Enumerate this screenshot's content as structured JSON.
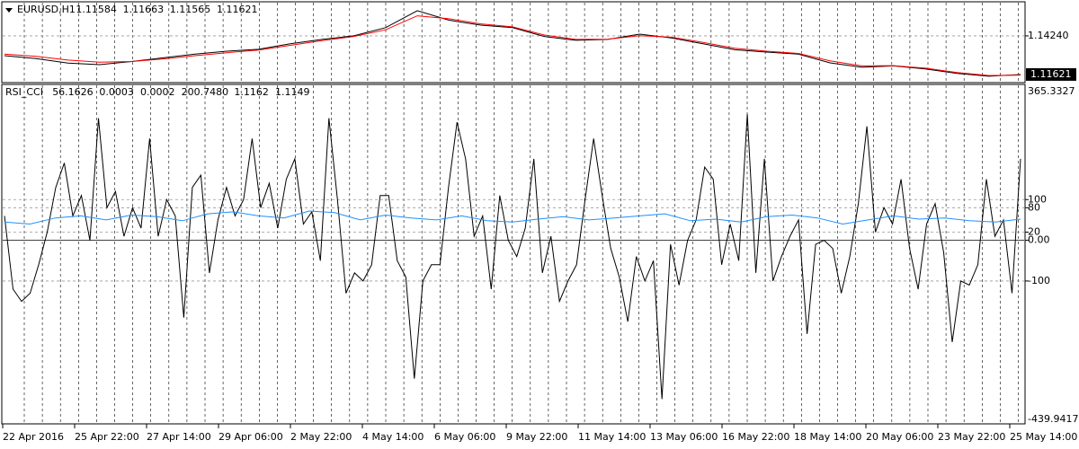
{
  "chart_data": [
    {
      "type": "line",
      "symbol": "EURUSD,H1",
      "header_values": [
        "1.11584",
        "1.11663",
        "1.11565",
        "1.11621"
      ],
      "series": [
        {
          "color": "#000000",
          "values": [
            1.129,
            1.127,
            1.124,
            1.1229,
            1.125,
            1.1275,
            1.13,
            1.132,
            1.1333,
            1.137,
            1.14,
            1.1424,
            1.148,
            1.1595,
            1.153,
            1.1497,
            1.148,
            1.142,
            1.1394,
            1.14,
            1.1436,
            1.141,
            1.137,
            1.133,
            1.1314,
            1.13,
            1.1241,
            1.1211,
            1.122,
            1.12,
            1.117,
            1.115,
            1.1162
          ]
        },
        {
          "color": "#ff0000",
          "values": [
            1.13,
            1.1285,
            1.126,
            1.1245,
            1.125,
            1.1268,
            1.129,
            1.131,
            1.1328,
            1.136,
            1.1392,
            1.142,
            1.1465,
            1.156,
            1.154,
            1.1505,
            1.1485,
            1.143,
            1.14,
            1.1402,
            1.1425,
            1.1415,
            1.138,
            1.134,
            1.132,
            1.1305,
            1.1255,
            1.122,
            1.1222,
            1.1205,
            1.1175,
            1.1155,
            1.1158
          ]
        }
      ],
      "ylim": [
        1.1107,
        1.1649
      ],
      "yticks": [
        {
          "value": 1.1424,
          "label": "1.14240"
        }
      ],
      "last_price": 1.11621
    },
    {
      "type": "line",
      "indicator": "RSI_CCI",
      "header_values": [
        "56.1626",
        "0.0003",
        "0.0002",
        "200.7480",
        "1.1162",
        "1.1149"
      ],
      "series": [
        {
          "color": "#000000",
          "values": [
            60,
            -120,
            -150,
            -130,
            -60,
            20,
            130,
            190,
            60,
            110,
            0,
            300,
            80,
            120,
            10,
            80,
            30,
            250,
            10,
            100,
            60,
            -190,
            130,
            160,
            -80,
            50,
            130,
            60,
            100,
            250,
            80,
            140,
            30,
            150,
            200,
            40,
            70,
            -50,
            300,
            100,
            -130,
            -80,
            -100,
            -60,
            110,
            110,
            -50,
            -90,
            -340,
            -100,
            -60,
            -60,
            130,
            290,
            200,
            10,
            60,
            -120,
            110,
            0,
            -40,
            30,
            200,
            -80,
            10,
            -150,
            -100,
            -60,
            100,
            250,
            110,
            -20,
            -90,
            -200,
            -40,
            -100,
            -50,
            -390,
            -10,
            -110,
            0,
            50,
            180,
            150,
            -60,
            40,
            -50,
            310,
            -80,
            200,
            -100,
            -40,
            10,
            50,
            -230,
            -10,
            0,
            -20,
            -130,
            -40,
            90,
            280,
            20,
            80,
            40,
            150,
            -20,
            -120,
            40,
            90,
            -30,
            -250,
            -100,
            -110,
            -60,
            150,
            10,
            50,
            -130,
            200
          ]
        },
        {
          "color": "#1e90ff",
          "values": [
            45,
            40,
            55,
            60,
            50,
            62,
            58,
            48,
            65,
            70,
            60,
            55,
            72,
            68,
            50,
            62,
            55,
            50,
            60,
            48,
            45,
            52,
            58,
            50,
            55,
            60,
            65,
            48,
            52,
            45,
            58,
            62,
            55,
            40,
            50,
            60,
            52,
            55,
            48,
            45,
            52
          ]
        }
      ],
      "ylim": [
        -439.9417,
        365.3327
      ],
      "yticks": [
        100,
        80,
        20,
        {
          "value": 0,
          "label": "0.00"
        },
        -100
      ]
    },
    {
      "type": "time_axis",
      "labels": [
        "22 Apr 2016",
        "25 Apr 22:00",
        "27 Apr 14:00",
        "29 Apr 06:00",
        "2 May 22:00",
        "4 May 14:00",
        "6 May 06:00",
        "9 May 22:00",
        "11 May 14:00",
        "13 May 06:00",
        "16 May 22:00",
        "18 May 14:00",
        "20 May 06:00",
        "23 May 22:00",
        "25 May 14:00"
      ]
    }
  ]
}
